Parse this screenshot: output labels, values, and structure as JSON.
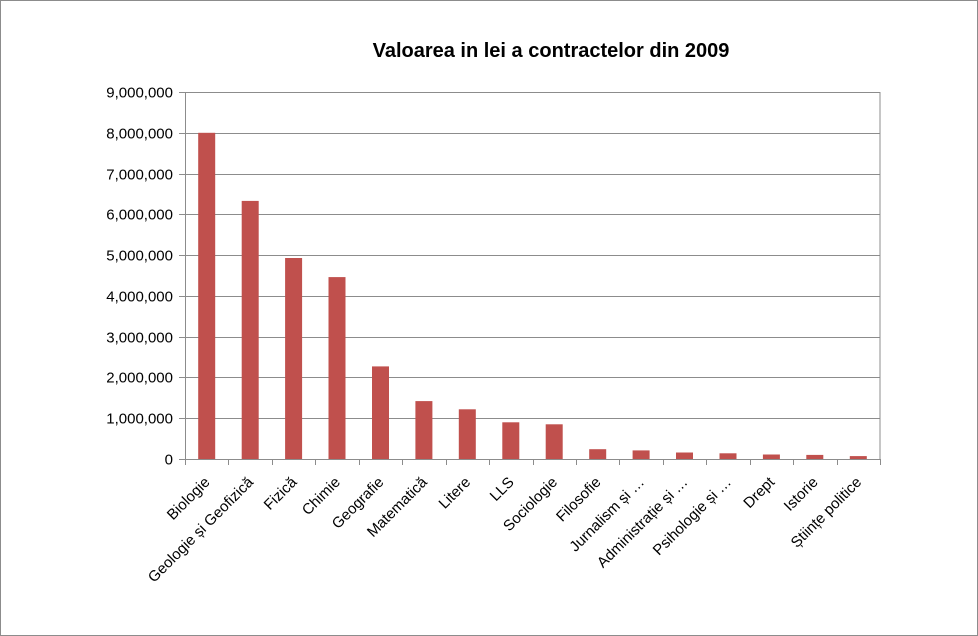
{
  "chart_data": {
    "type": "bar",
    "title": "Valoarea in lei a contractelor din 2009",
    "xlabel": "",
    "ylabel": "",
    "ylim": [
      0,
      9000000
    ],
    "yticks": [
      0,
      1000000,
      2000000,
      3000000,
      4000000,
      5000000,
      6000000,
      7000000,
      8000000,
      9000000
    ],
    "ytick_labels": [
      "0",
      "1,000,000",
      "2,000,000",
      "3,000,000",
      "4,000,000",
      "5,000,000",
      "6,000,000",
      "7,000,000",
      "8,000,000",
      "9,000,000"
    ],
    "grid": true,
    "legend": "none",
    "bar_color": "#C0504D",
    "categories": [
      "Biologie",
      "Geologie și Geofizică",
      "Fizică",
      "Chimie",
      "Geografie",
      "Matematică",
      "Litere",
      "LLS",
      "Sociologie",
      "Filosofie",
      "Jurnalism și …",
      "Administrație și …",
      "Psihologie și …",
      "Drept",
      "Istorie",
      "Științe politice"
    ],
    "values": [
      8000000,
      6330000,
      4930000,
      4460000,
      2270000,
      1420000,
      1220000,
      900000,
      850000,
      240000,
      210000,
      160000,
      140000,
      110000,
      100000,
      70000
    ]
  }
}
